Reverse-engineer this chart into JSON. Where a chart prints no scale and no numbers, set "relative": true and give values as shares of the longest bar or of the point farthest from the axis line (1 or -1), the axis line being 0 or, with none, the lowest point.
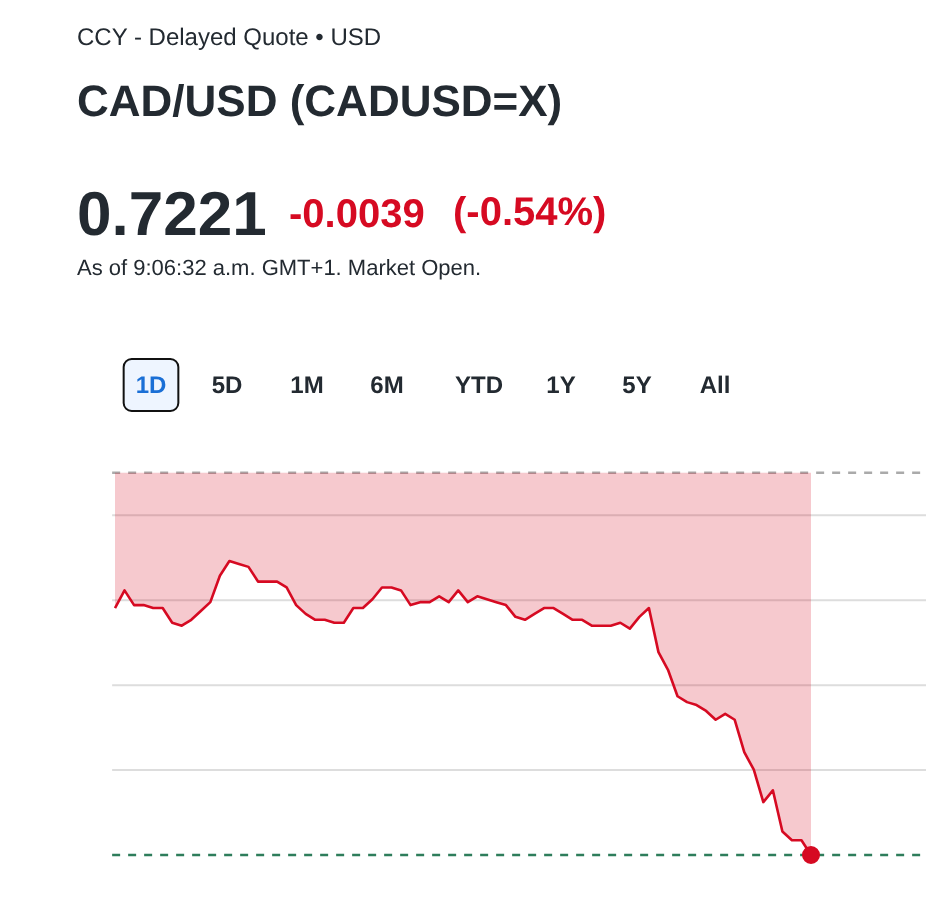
{
  "chart_data": {
    "type": "area",
    "relative": true,
    "subtitle": "CCY - Delayed Quote • USD",
    "title": "CAD/USD (CADUSD=X)",
    "annotations": [
      "0.7221",
      "-0.0039",
      "(-0.54%)",
      "As of 9:06:32 a.m. GMT+1. Market Open.",
      "1D",
      "5D",
      "1M",
      "6M",
      "YTD",
      "1Y",
      "5Y",
      "All"
    ],
    "categories": [
      null,
      null,
      null,
      null,
      null,
      null,
      null,
      null,
      null,
      null,
      null,
      null,
      null,
      null,
      null,
      null,
      null,
      null,
      null,
      null,
      null,
      null,
      null,
      null,
      null,
      null,
      null,
      null,
      null,
      null,
      null,
      null,
      null,
      null,
      null,
      null,
      null,
      null,
      null,
      null,
      null,
      null,
      null,
      null,
      null,
      null,
      null,
      null,
      null,
      null,
      null,
      null,
      null,
      null,
      null,
      null,
      null,
      null,
      null,
      null,
      null,
      null,
      null,
      null,
      null,
      null,
      null,
      null,
      null,
      null,
      null,
      null,
      null,
      null
    ],
    "series": [
      {
        "color": "#d60a22",
        "values": [
          0.84,
          0.9,
          0.85,
          0.85,
          0.84,
          0.84,
          0.79,
          0.78,
          0.8,
          0.83,
          0.86,
          0.95,
          1.0,
          0.99,
          0.98,
          0.93,
          0.93,
          0.93,
          0.91,
          0.85,
          0.82,
          0.8,
          0.8,
          0.79,
          0.79,
          0.84,
          0.84,
          0.87,
          0.91,
          0.91,
          0.9,
          0.85,
          0.86,
          0.86,
          0.88,
          0.86,
          0.9,
          0.86,
          0.88,
          0.87,
          0.86,
          0.85,
          0.81,
          0.8,
          0.82,
          0.84,
          0.84,
          0.82,
          0.8,
          0.8,
          0.78,
          0.78,
          0.78,
          0.79,
          0.77,
          0.81,
          0.84,
          0.69,
          0.63,
          0.54,
          0.52,
          0.51,
          0.49,
          0.46,
          0.48,
          0.46,
          0.35,
          0.29,
          0.18,
          0.22,
          0.08,
          0.05,
          0.05,
          0
        ]
      }
    ],
    "ref_lines": [
      {
        "axis": "y",
        "value": 1.3,
        "color": "#aaaaaa",
        "line_style": "dashed"
      },
      {
        "axis": "y",
        "value": 0,
        "color": "#2e7d5b",
        "line_style": "dashed"
      }
    ],
    "grid": "y",
    "line_style": "solid",
    "marker": "none"
  }
}
